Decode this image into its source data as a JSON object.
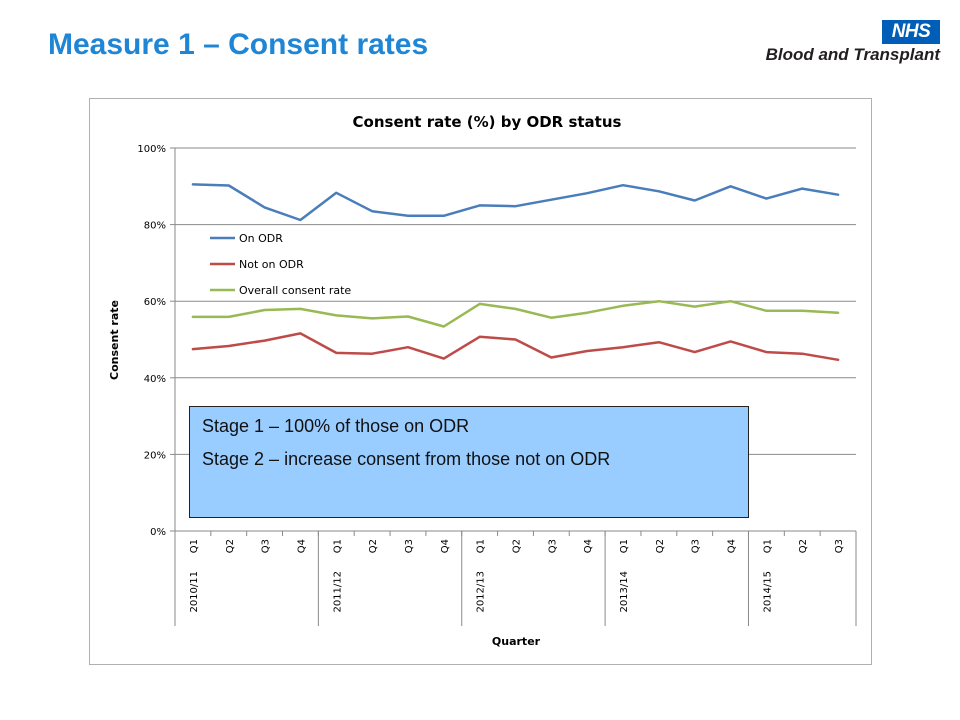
{
  "slide": {
    "title": "Measure 1 – Consent rates"
  },
  "logo": {
    "badge": "NHS",
    "org": "Blood and Transplant"
  },
  "callout": {
    "line1": "Stage 1 – 100% of those on ODR",
    "line2": "Stage 2 – increase consent from those not on ODR"
  },
  "chart_data": {
    "type": "line",
    "title": "Consent rate (%) by ODR status",
    "xlabel": "Quarter",
    "ylabel": "Consent rate",
    "ylim": [
      0,
      100
    ],
    "yticks": [
      "0%",
      "20%",
      "40%",
      "60%",
      "80%",
      "100%"
    ],
    "yticks_values": [
      0,
      20,
      40,
      60,
      80,
      100
    ],
    "grid": true,
    "legend_position": "inside, upper-left",
    "categories": [
      "Q1",
      "Q2",
      "Q3",
      "Q4",
      "Q1",
      "Q2",
      "Q3",
      "Q4",
      "Q1",
      "Q2",
      "Q3",
      "Q4",
      "Q1",
      "Q2",
      "Q3",
      "Q4",
      "Q1",
      "Q2",
      "Q3"
    ],
    "years": [
      {
        "label": "2010/11",
        "start_index": 0
      },
      {
        "label": "2011/12",
        "start_index": 4
      },
      {
        "label": "2012/13",
        "start_index": 8
      },
      {
        "label": "2013/14",
        "start_index": 12
      },
      {
        "label": "2014/15",
        "start_index": 16
      }
    ],
    "series": [
      {
        "name": "On ODR",
        "color": "#4a7ebb",
        "values": [
          90.5,
          90.2,
          84.5,
          81.2,
          88.3,
          83.5,
          82.3,
          82.3,
          85.0,
          84.8,
          86.5,
          88.2,
          90.3,
          88.7,
          86.3,
          90.0,
          86.8,
          89.4,
          87.8
        ]
      },
      {
        "name": "Not on ODR",
        "color": "#be4b48",
        "values": [
          47.5,
          48.3,
          49.7,
          51.6,
          46.5,
          46.3,
          48.0,
          45.0,
          50.7,
          50.0,
          45.3,
          47.0,
          48.0,
          49.3,
          46.7,
          49.5,
          46.7,
          46.3,
          44.7
        ]
      },
      {
        "name": "Overall consent rate",
        "color": "#98b954",
        "values": [
          55.9,
          55.9,
          57.7,
          58.0,
          56.3,
          55.5,
          56.0,
          53.4,
          59.3,
          58.0,
          55.7,
          57.0,
          58.8,
          60.0,
          58.6,
          60.0,
          57.5,
          57.5,
          57.0
        ]
      }
    ]
  }
}
